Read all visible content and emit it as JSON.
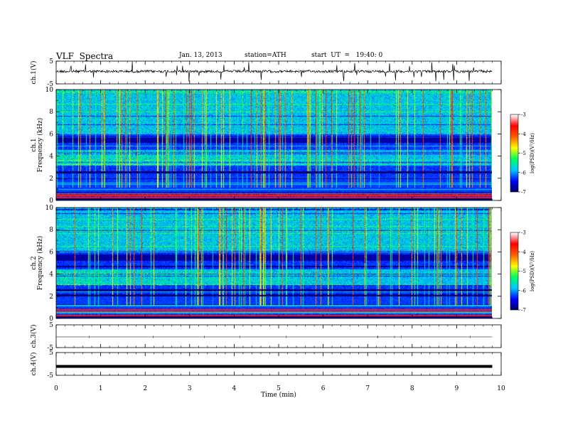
{
  "header": {
    "title": "VLF  Spectra",
    "date": "Jan. 13, 2013",
    "station": "station=ATH",
    "start": "start  UT  =   19:40: 0"
  },
  "chart_data": [
    {
      "type": "line",
      "ylabel": "ch.1(V)",
      "ylim": [
        -5,
        5
      ],
      "yticks": [
        "5",
        "-5"
      ],
      "xlim": [
        0,
        10
      ],
      "trace": "noisy waveform with frequent spikes",
      "data_extent_min": 9.8
    },
    {
      "type": "heatmap",
      "ylabel": "Frequency  (kHz)",
      "channel": "ch.1",
      "xlim": [
        0,
        10
      ],
      "ylim": [
        0,
        10
      ],
      "yticks": [
        "0",
        "2",
        "4",
        "6",
        "8",
        "10"
      ],
      "colorbar": {
        "label": "log(PSD)(V²/Hz)",
        "range": [
          -7,
          -3
        ],
        "ticks": [
          "-3",
          "-4",
          "-5",
          "-6",
          "-7"
        ],
        "colors": [
          "#000060",
          "#0000ff",
          "#00c8ff",
          "#00ff60",
          "#ffff00",
          "#ff6000",
          "#ff0000",
          "#ffffff"
        ]
      },
      "features": {
        "dark_band_khz": [
          5.2,
          5.8
        ],
        "diffuse_band_khz": [
          3.2,
          4.6
        ],
        "strong_lines_khz": [
          0.3,
          0.5,
          2.5,
          2.6
        ]
      }
    },
    {
      "type": "heatmap",
      "ylabel": "Frequency  (kHz)",
      "channel": "ch.2",
      "xlim": [
        0,
        10
      ],
      "ylim": [
        0,
        10
      ],
      "yticks": [
        "0",
        "2",
        "4",
        "6",
        "8",
        "10"
      ],
      "colorbar": {
        "label": "log(PSD)(V²/Hz)",
        "range": [
          -7,
          -3
        ],
        "ticks": [
          "-3",
          "-4",
          "-5",
          "-6",
          "-7"
        ],
        "colors": [
          "#000060",
          "#0000ff",
          "#00c8ff",
          "#00ff60",
          "#ffff00",
          "#ff6000",
          "#ff0000",
          "#ffffff"
        ]
      },
      "features": {
        "dark_band_khz": [
          5.2,
          5.8
        ],
        "diffuse_band_khz": [
          3.0,
          4.4
        ],
        "strong_lines_khz": [
          0.3,
          0.8,
          2.1,
          2.6
        ]
      }
    },
    {
      "type": "line",
      "ylabel": "ch.3(V)",
      "ylim": [
        -5,
        5
      ],
      "yticks": [
        "5",
        "-5"
      ],
      "trace": "flat near 0 V"
    },
    {
      "type": "line",
      "ylabel": "ch.4(V)",
      "ylim": [
        -5,
        5
      ],
      "yticks": [
        "5",
        "-5"
      ],
      "trace": "thick flat band near 0 V"
    }
  ],
  "xaxis": {
    "label": "Time  (min)",
    "ticks": [
      "0",
      "1",
      "2",
      "3",
      "4",
      "5",
      "6",
      "7",
      "8",
      "9",
      "10"
    ]
  }
}
